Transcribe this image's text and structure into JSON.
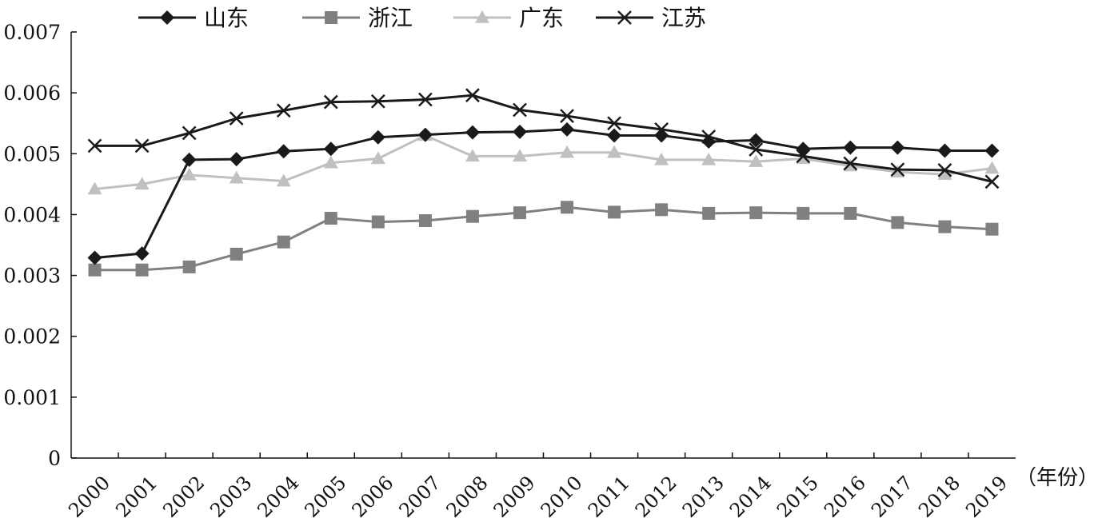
{
  "chart_data": {
    "type": "line",
    "x_unit": "（年份）",
    "categories": [
      "2000",
      "2001",
      "2002",
      "2003",
      "2004",
      "2005",
      "2006",
      "2007",
      "2008",
      "2009",
      "2010",
      "2011",
      "2012",
      "2013",
      "2014",
      "2015",
      "2016",
      "2017",
      "2018",
      "2019"
    ],
    "ylim": [
      0,
      0.007
    ],
    "yticks": [
      "0",
      "0.001",
      "0.002",
      "0.003",
      "0.004",
      "0.005",
      "0.006",
      "0.007"
    ],
    "legend_position": "top",
    "grid": false,
    "series": [
      {
        "name": "山东",
        "color": "#1a1a1a",
        "marker": "diamond",
        "values": [
          0.00329,
          0.00336,
          0.0049,
          0.00491,
          0.00504,
          0.00508,
          0.00527,
          0.00531,
          0.00535,
          0.00536,
          0.0054,
          0.0053,
          0.0053,
          0.0052,
          0.00522,
          0.00508,
          0.0051,
          0.0051,
          0.00505,
          0.00505
        ]
      },
      {
        "name": "浙江",
        "color": "#808080",
        "marker": "square",
        "values": [
          0.00309,
          0.00309,
          0.00314,
          0.00335,
          0.00355,
          0.00394,
          0.00388,
          0.0039,
          0.00397,
          0.00403,
          0.00412,
          0.00404,
          0.00408,
          0.00402,
          0.00403,
          0.00402,
          0.00402,
          0.00387,
          0.0038,
          0.00376
        ]
      },
      {
        "name": "广东",
        "color": "#c0c0c0",
        "marker": "triangle",
        "values": [
          0.00442,
          0.0045,
          0.00465,
          0.0046,
          0.00455,
          0.00485,
          0.00492,
          0.0053,
          0.00496,
          0.00496,
          0.00502,
          0.00502,
          0.0049,
          0.0049,
          0.00487,
          0.00492,
          0.0048,
          0.0047,
          0.00466,
          0.00476
        ]
      },
      {
        "name": "江苏",
        "color": "#1a1a1a",
        "marker": "x",
        "values": [
          0.00513,
          0.00513,
          0.00534,
          0.00558,
          0.00571,
          0.00585,
          0.00586,
          0.00589,
          0.00596,
          0.00572,
          0.00562,
          0.0055,
          0.0054,
          0.00528,
          0.00507,
          0.00496,
          0.00484,
          0.00474,
          0.00473,
          0.00454
        ]
      }
    ]
  }
}
